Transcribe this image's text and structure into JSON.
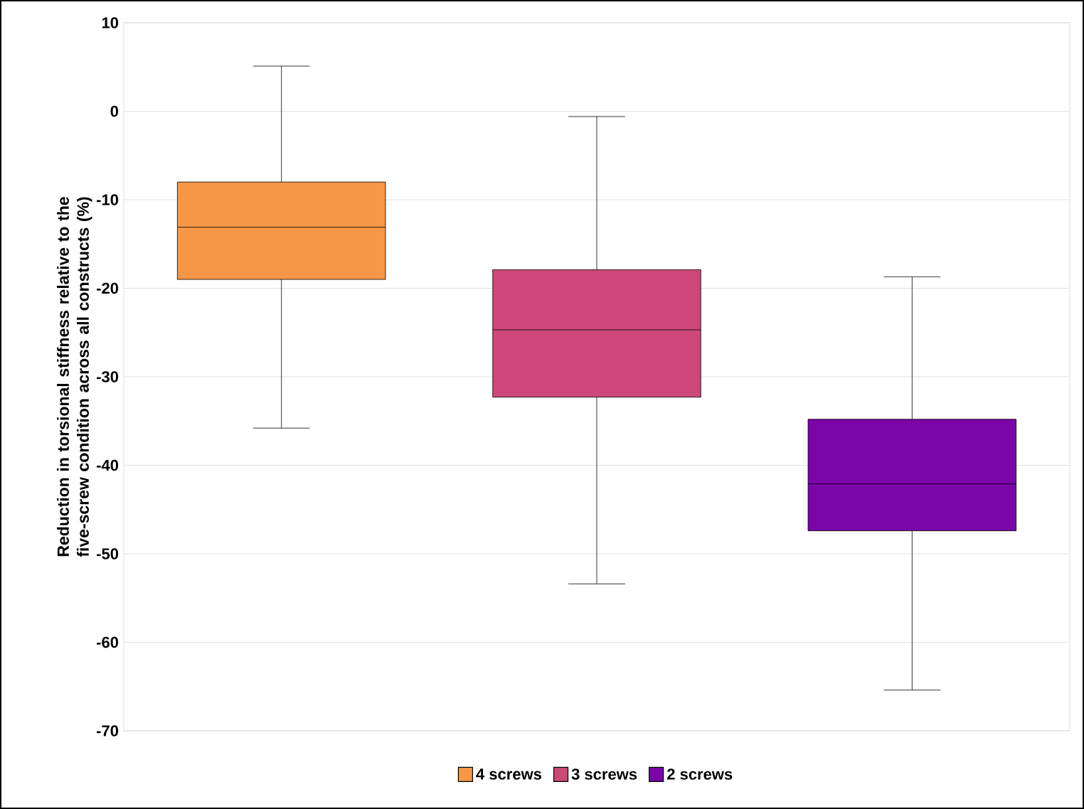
{
  "chart_data": {
    "type": "box",
    "ylabel": "Reduction in torsional stiffness relative to the five-screw condition across all constructs (%)",
    "categories": [
      null,
      null,
      null
    ],
    "series": [
      {
        "name": "4 screws",
        "color": "#f79646",
        "boxes": [
          {
            "low": -35.8,
            "q1": -19.0,
            "median": -13.1,
            "q3": -8.0,
            "high": 5.1
          },
          null,
          null
        ]
      },
      {
        "name": "3 screws",
        "color": "#cc4878",
        "boxes": [
          null,
          {
            "low": -53.4,
            "q1": -32.3,
            "median": -24.7,
            "q3": -17.9,
            "high": -0.6
          },
          null
        ]
      },
      {
        "name": "2 screws",
        "color": "#7b06a8",
        "boxes": [
          null,
          null,
          {
            "low": -65.4,
            "q1": -47.4,
            "median": -42.1,
            "q3": -34.8,
            "high": -18.7
          }
        ]
      }
    ],
    "ylim": [
      -70,
      10
    ],
    "yticks": [
      -70,
      -60,
      -50,
      -40,
      -30,
      -20,
      -10,
      0,
      10
    ],
    "grid": "y",
    "legend": "bottom",
    "tick_labels": "y"
  }
}
